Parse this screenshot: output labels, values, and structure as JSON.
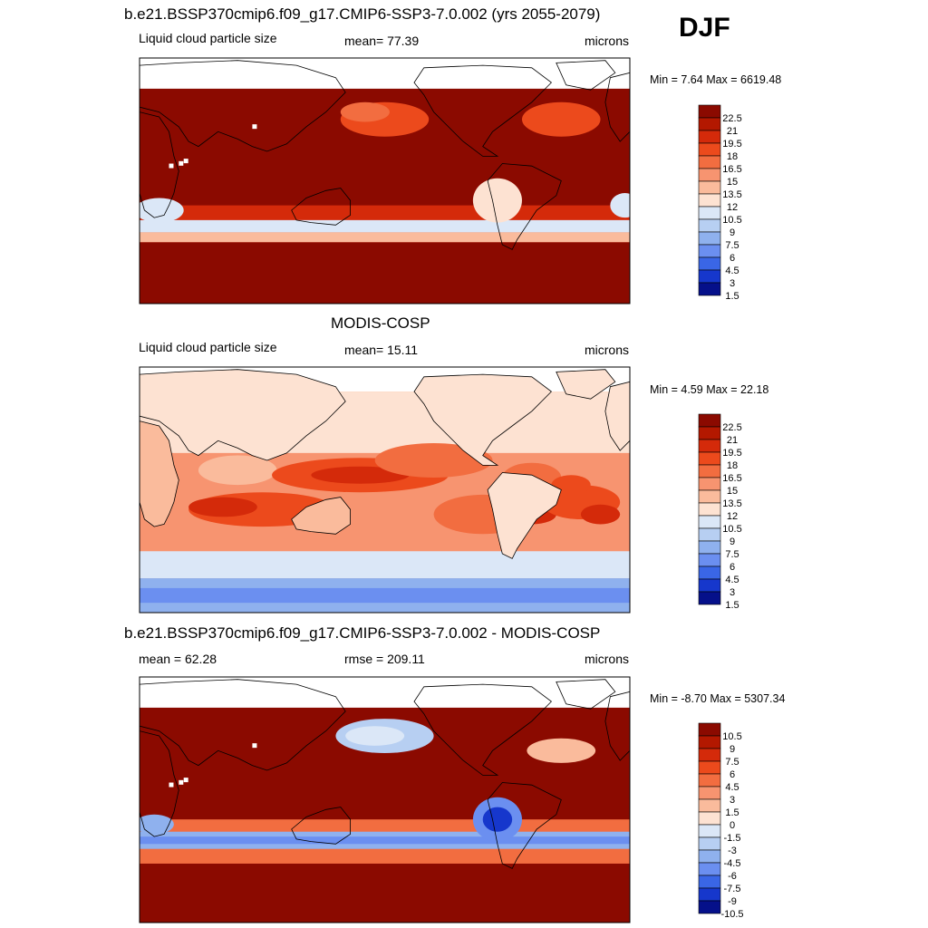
{
  "season": "DJF",
  "panels": [
    {
      "title": "b.e21.BSSP370cmip6.f09_g17.CMIP6-SSP3-7.0.002 (yrs 2055-2079)",
      "left_label": "Liquid cloud particle size",
      "center_label": "mean=  77.39",
      "units": "microns",
      "minmax": "Min =   7.64 Max = 6619.48"
    },
    {
      "title": "MODIS-COSP",
      "left_label": "Liquid cloud particle size",
      "center_label": "mean=  15.11",
      "units": "microns",
      "minmax": "Min =   4.59 Max =  22.18"
    },
    {
      "title": "b.e21.BSSP370cmip6.f09_g17.CMIP6-SSP3-7.0.002 - MODIS-COSP",
      "left_label": "mean =  62.28",
      "center_label": "rmse = 209.11",
      "units": "microns",
      "minmax": "Min =  -8.70 Max = 5307.34"
    }
  ],
  "chart_data": [
    {
      "type": "heatmap",
      "title": "b.e21.BSSP370cmip6.f09_g17.CMIP6-SSP3-7.0.002 (yrs 2055-2079)",
      "variable": "Liquid cloud particle size",
      "units": "microns",
      "mean": 77.39,
      "min": 7.64,
      "max": 6619.48,
      "colorbar_levels": [
        22.5,
        21,
        19.5,
        18,
        16.5,
        15,
        13.5,
        12,
        10.5,
        9,
        7.5,
        6,
        4.5,
        3,
        1.5
      ],
      "colorbar_labels": [
        "22.5",
        "21",
        "19.5",
        "18",
        "16.5",
        "15",
        "13.5",
        "12",
        "10.5",
        "9",
        "7.5",
        "6",
        "4.5",
        "3",
        "1.5"
      ]
    },
    {
      "type": "heatmap",
      "title": "MODIS-COSP",
      "variable": "Liquid cloud particle size",
      "units": "microns",
      "mean": 15.11,
      "min": 4.59,
      "max": 22.18,
      "colorbar_levels": [
        22.5,
        21,
        19.5,
        18,
        16.5,
        15,
        13.5,
        12,
        10.5,
        9,
        7.5,
        6,
        4.5,
        3,
        1.5
      ],
      "colorbar_labels": [
        "22.5",
        "21",
        "19.5",
        "18",
        "16.5",
        "15",
        "13.5",
        "12",
        "10.5",
        "9",
        "7.5",
        "6",
        "4.5",
        "3",
        "1.5"
      ]
    },
    {
      "type": "heatmap",
      "title": "b.e21.BSSP370cmip6.f09_g17.CMIP6-SSP3-7.0.002 - MODIS-COSP",
      "units": "microns",
      "mean": 62.28,
      "rmse": 209.11,
      "min": -8.7,
      "max": 5307.34,
      "colorbar_levels": [
        10.5,
        9,
        7.5,
        6,
        4.5,
        3,
        1.5,
        0,
        -1.5,
        -3,
        -4.5,
        -6,
        -7.5,
        -9,
        -10.5
      ],
      "colorbar_labels": [
        "10.5",
        "9",
        "7.5",
        "6",
        "4.5",
        "3",
        "1.5",
        "0",
        "-1.5",
        "-3",
        "-4.5",
        "-6",
        "-7.5",
        "-9",
        "-10.5"
      ]
    }
  ],
  "colors": {
    "palette": [
      "#8b0a00",
      "#b31800",
      "#d42a0a",
      "#ec4a1c",
      "#f26d40",
      "#f79470",
      "#fabb9c",
      "#fde2d2",
      "#dbe7f7",
      "#b7cff2",
      "#8fb1ee",
      "#6b8ff0",
      "#3a66e6",
      "#1637cc",
      "#05108a"
    ]
  }
}
